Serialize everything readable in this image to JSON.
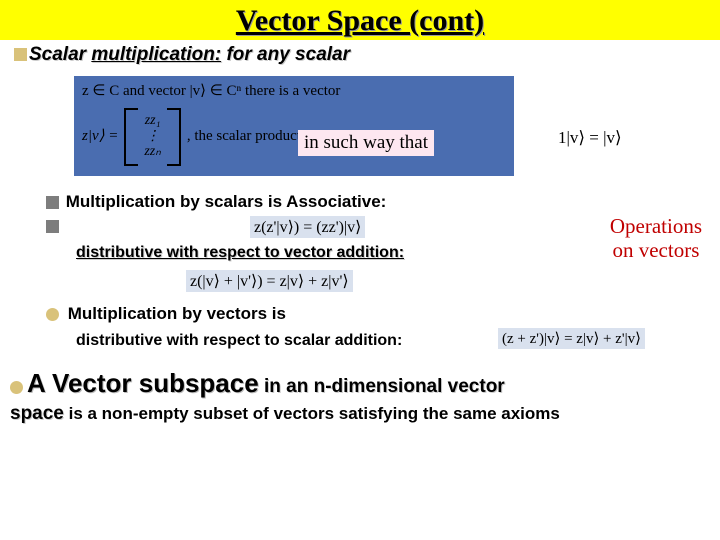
{
  "title": {
    "text": "Vector Space (cont)",
    "bg": "#ffff00",
    "color": "#000000",
    "fontsize": 30
  },
  "scalar_line": {
    "scalar": "Scalar",
    "mult": "multiplication:",
    "for_any": "for any scalar"
  },
  "panel": {
    "bg": "#4a6db0",
    "row1": "z ∈ C and vector |v⟩ ∈ Cⁿ there is a vector",
    "lhs": "z|v⟩ =",
    "col_top": "zz₁",
    "col_mid": "⋮",
    "col_bot": "zzₙ",
    "tail": ", the scalar product,"
  },
  "in_such": "in such way that",
  "identity": "1|v⟩ = |v⟩",
  "assoc": {
    "bullet_label": "Multiplication by scalars is Associative:",
    "formula": "z(z'|v⟩) = (zz')|v⟩",
    "formula_bg": "#d9e1ee"
  },
  "dist_vector": {
    "label": "distributive with respect to vector addition:",
    "formula": "z(|v⟩ + |v'⟩) = z|v⟩ + z|v'⟩",
    "formula_bg": "#d9e1ee"
  },
  "operations": {
    "line1": "Operations",
    "line2": "on vectors",
    "color": "#c00000"
  },
  "mult_vectors": "Multiplication by vectors is",
  "dist_scalar": {
    "label": "distributive with respect to scalar addition:",
    "formula": "(z + z')|v⟩ = z|v⟩ + z'|v⟩",
    "formula_bg": "#d9e1ee"
  },
  "subspace": {
    "lead_big": "A Vector subspace",
    "in_an": " in an ",
    "ndim": "n-dimensional vector",
    "space": "space",
    "rest": " is a non-empty subset of vectors satisfying the same axioms"
  },
  "colors": {
    "bullet_square": "#d9c27a",
    "bullet_gray": "#7d7d7d",
    "bullet_round": "#d9c27a"
  }
}
